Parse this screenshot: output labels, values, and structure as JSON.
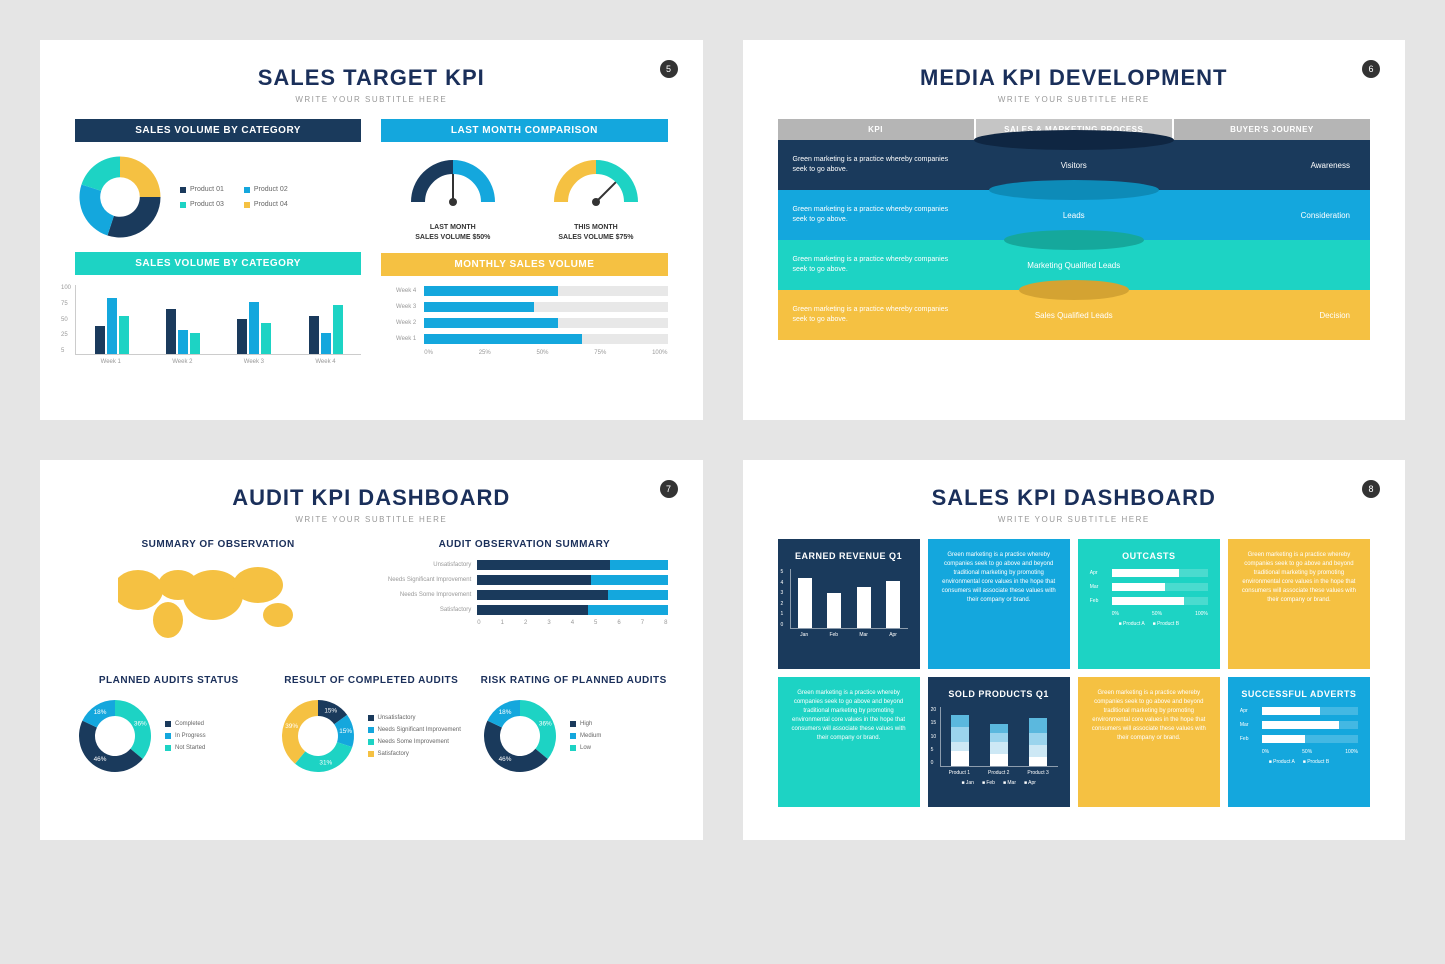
{
  "colors": {
    "navy": "#1a3a5c",
    "blue": "#14a7dd",
    "teal": "#1dd3c4",
    "yellow": "#f5c142",
    "gray": "#b5b5b5",
    "lightgray": "#e8e8e8",
    "darknavy": "#0f2642"
  },
  "s1": {
    "title": "SALES TARGET KPI",
    "sub": "WRITE YOUR SUBTITLE HERE",
    "num": "5",
    "band1": "SALES VOLUME BY CATEGORY",
    "band1_bg": "#1a3a5c",
    "band2": "LAST MONTH COMPARISON",
    "band2_bg": "#14a7dd",
    "band3": "SALES VOLUME BY CATEGORY",
    "band3_bg": "#1dd3c4",
    "band4": "MONTHLY SALES VOLUME",
    "band4_bg": "#f5c142",
    "donut": {
      "segments": [
        {
          "c": "#f5c142",
          "v": 25
        },
        {
          "c": "#1a3a5c",
          "v": 30
        },
        {
          "c": "#14a7dd",
          "v": 25
        },
        {
          "c": "#1dd3c4",
          "v": 20
        }
      ]
    },
    "legend": [
      {
        "c": "#1a3a5c",
        "t": "Product 01"
      },
      {
        "c": "#14a7dd",
        "t": "Product 02"
      },
      {
        "c": "#1dd3c4",
        "t": "Product 03"
      },
      {
        "c": "#f5c142",
        "t": "Product 04"
      }
    ],
    "gauge1": {
      "label1": "LAST MONTH",
      "label2": "SALES VOLUME $50%",
      "c1": "#1a3a5c",
      "c2": "#14a7dd",
      "pct": 50
    },
    "gauge2": {
      "label1": "THIS MONTH",
      "label2": "SALES VOLUME $75%",
      "c1": "#f5c142",
      "c2": "#1dd3c4",
      "pct": 75
    },
    "bars": {
      "ylabels": [
        "100",
        "75",
        "50",
        "25",
        "5"
      ],
      "groups": [
        "Week 1",
        "Week 2",
        "Week 3",
        "Week 4"
      ],
      "data": [
        [
          40,
          80,
          55
        ],
        [
          65,
          35,
          30
        ],
        [
          50,
          75,
          45
        ],
        [
          55,
          30,
          70
        ]
      ],
      "colors": [
        "#1a3a5c",
        "#14a7dd",
        "#1dd3c4"
      ]
    },
    "hbars": {
      "rows": [
        {
          "l": "Week 4",
          "v": 55
        },
        {
          "l": "Week 3",
          "v": 45
        },
        {
          "l": "Week 2",
          "v": 55
        },
        {
          "l": "Week 1",
          "v": 65
        }
      ],
      "c": "#14a7dd",
      "axis": [
        "0%",
        "25%",
        "50%",
        "75%",
        "100%"
      ]
    }
  },
  "s2": {
    "title": "MEDIA KPI DEVELOPMENT",
    "sub": "WRITE YOUR SUBTITLE HERE",
    "num": "6",
    "tabs": [
      {
        "t": "KPI",
        "c": "#b5b5b5"
      },
      {
        "t": "SALES & MARKETING PROCESS",
        "c": "#c5c5c5"
      },
      {
        "t": "BUYER'S JOURNEY",
        "c": "#b5b5b5"
      }
    ],
    "rows": [
      {
        "bg": "#1a3a5c",
        "text": "Green marketing is a practice whereby companies seek to go above.",
        "stage": "Visitors",
        "right": "Awareness",
        "shape_w": 200,
        "shape_c": "#0f2642"
      },
      {
        "bg": "#14a7dd",
        "text": "Green marketing is a practice whereby companies seek to go above.",
        "stage": "Leads",
        "right": "Consideration",
        "shape_w": 170,
        "shape_c": "#0d8bb8"
      },
      {
        "bg": "#1dd3c4",
        "text": "Green marketing is a practice whereby companies seek to go above.",
        "stage": "Marketing Qualified Leads",
        "right": "",
        "shape_w": 140,
        "shape_c": "#15a89c"
      },
      {
        "bg": "#f5c142",
        "text": "Green marketing is a practice whereby companies seek to go above.",
        "stage": "Sales Qualified Leads",
        "right": "Decision",
        "shape_w": 110,
        "shape_c": "#d4a332"
      }
    ]
  },
  "s3": {
    "title": "AUDIT KPI DASHBOARD",
    "sub": "WRITE YOUR SUBTITLE HERE",
    "num": "7",
    "sec1": "SUMMARY OF OBSERVATION",
    "sec2": "AUDIT OBSERVATION SUMMARY",
    "sec3": "PLANNED AUDITS STATUS",
    "sec4": "RESULT OF COMPLETED AUDITS",
    "sec5": "RISK RATING OF PLANNED AUDITS",
    "map_c": "#f5c142",
    "audit_bars": {
      "rows": [
        {
          "l": "Unsatisfactory",
          "segs": [
            {
              "c": "#1a3a5c",
              "v": 35
            },
            {
              "c": "#14a7dd",
              "v": 15
            }
          ]
        },
        {
          "l": "Needs Significant Improvement",
          "segs": [
            {
              "c": "#1a3a5c",
              "v": 30
            },
            {
              "c": "#14a7dd",
              "v": 20
            }
          ]
        },
        {
          "l": "Needs Some Improvement",
          "segs": [
            {
              "c": "#1a3a5c",
              "v": 55
            },
            {
              "c": "#14a7dd",
              "v": 25
            }
          ]
        },
        {
          "l": "Satisfactory",
          "segs": [
            {
              "c": "#1a3a5c",
              "v": 35
            },
            {
              "c": "#14a7dd",
              "v": 25
            }
          ]
        }
      ],
      "axis": [
        "0",
        "1",
        "2",
        "3",
        "4",
        "5",
        "6",
        "7",
        "8"
      ]
    },
    "d1": {
      "segs": [
        {
          "c": "#1dd3c4",
          "v": 36,
          "l": "36%"
        },
        {
          "c": "#1a3a5c",
          "v": 46,
          "l": "46%"
        },
        {
          "c": "#14a7dd",
          "v": 18,
          "l": "18%"
        }
      ],
      "legend": [
        {
          "c": "#1a3a5c",
          "t": "Completed"
        },
        {
          "c": "#14a7dd",
          "t": "In Progress"
        },
        {
          "c": "#1dd3c4",
          "t": "Not Started"
        }
      ]
    },
    "d2": {
      "segs": [
        {
          "c": "#1a3a5c",
          "v": 15,
          "l": "15%"
        },
        {
          "c": "#14a7dd",
          "v": 15,
          "l": "15%"
        },
        {
          "c": "#1dd3c4",
          "v": 31,
          "l": "31%"
        },
        {
          "c": "#f5c142",
          "v": 39,
          "l": "39%"
        }
      ],
      "legend": [
        {
          "c": "#1a3a5c",
          "t": "Unsatisfactory"
        },
        {
          "c": "#14a7dd",
          "t": "Needs Significant Improvement"
        },
        {
          "c": "#1dd3c4",
          "t": "Needs Some Improvement"
        },
        {
          "c": "#f5c142",
          "t": "Satisfactory"
        }
      ]
    },
    "d3": {
      "segs": [
        {
          "c": "#1dd3c4",
          "v": 36,
          "l": "36%"
        },
        {
          "c": "#1a3a5c",
          "v": 46,
          "l": "46%"
        },
        {
          "c": "#14a7dd",
          "v": 18,
          "l": "18%"
        }
      ],
      "legend": [
        {
          "c": "#1a3a5c",
          "t": "High"
        },
        {
          "c": "#14a7dd",
          "t": "Medium"
        },
        {
          "c": "#1dd3c4",
          "t": "Low"
        }
      ]
    }
  },
  "s4": {
    "title": "SALES KPI DASHBOARD",
    "sub": "WRITE YOUR SUBTITLE HERE",
    "num": "8",
    "text": "Green marketing is a practice whereby companies seek to go above and beyond traditional marketing by promoting environmental core values in the hope that consumers will associate these values with their company or brand.",
    "cards": [
      {
        "bg": "#1a3a5c",
        "type": "bars",
        "title": "EARNED REVENUE Q1",
        "y": [
          "5",
          "4",
          "3",
          "2",
          "1",
          "0"
        ],
        "x": [
          "Jan",
          "Feb",
          "Mar",
          "Apr"
        ],
        "vals": [
          85,
          60,
          70,
          80
        ]
      },
      {
        "bg": "#14a7dd",
        "type": "text"
      },
      {
        "bg": "#1dd3c4",
        "type": "hbars",
        "title": "OUTCASTS",
        "rows": [
          {
            "l": "Apr",
            "v": 70
          },
          {
            "l": "Mar",
            "v": 55
          },
          {
            "l": "Feb",
            "v": 75
          }
        ],
        "axis": [
          "0%",
          "50%",
          "100%"
        ],
        "legend": [
          "Product A",
          "Product B"
        ]
      },
      {
        "bg": "#f5c142",
        "type": "text"
      },
      {
        "bg": "#1dd3c4",
        "type": "text"
      },
      {
        "bg": "#1a3a5c",
        "type": "stacked",
        "title": "SOLD PRODUCTS Q1",
        "y": [
          "20",
          "15",
          "10",
          "5",
          "0"
        ],
        "x": [
          "Product 1",
          "Product 2",
          "Product 3"
        ],
        "stacks": [
          [
            25,
            15,
            25,
            20
          ],
          [
            20,
            20,
            15,
            15
          ],
          [
            15,
            20,
            20,
            25
          ]
        ],
        "colors": [
          "#fff",
          "#cde8f5",
          "#9bd4ed",
          "#5bb8de"
        ],
        "legend": [
          "Jan",
          "Feb",
          "Mar",
          "Apr"
        ]
      },
      {
        "bg": "#f5c142",
        "type": "text"
      },
      {
        "bg": "#14a7dd",
        "type": "hbars",
        "title": "SUCCESSFUL ADVERTS",
        "rows": [
          {
            "l": "Apr",
            "v": 60
          },
          {
            "l": "Mar",
            "v": 80
          },
          {
            "l": "Feb",
            "v": 45
          }
        ],
        "axis": [
          "0%",
          "50%",
          "100%"
        ],
        "legend": [
          "Product A",
          "Product B"
        ]
      }
    ]
  }
}
